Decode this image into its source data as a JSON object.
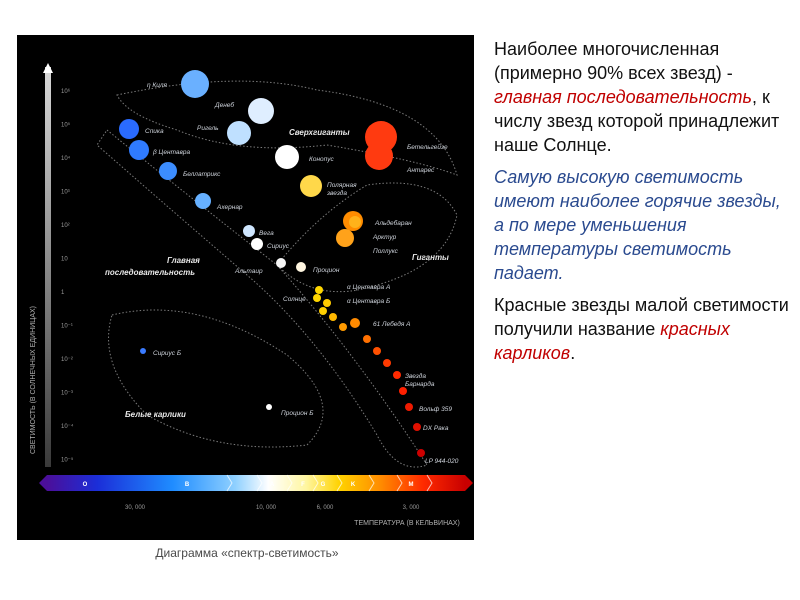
{
  "diagram": {
    "ylabel": "СВЕТИМОСТЬ (В СОЛНЕЧНЫХ ЕДИНИЦАХ)",
    "xlabel": "ТЕМПЕРАТУРА (В КЕЛЬВИНАХ)",
    "y_ticks": [
      "10⁶",
      "10⁵",
      "10⁴",
      "10³",
      "10²",
      "10",
      "1",
      "10⁻¹",
      "10⁻²",
      "10⁻³",
      "10⁻⁴",
      "10⁻⁵"
    ],
    "x_ticks": [
      "30, 000",
      "10, 000",
      "6, 000",
      "3, 000"
    ],
    "spectral_classes": [
      "O",
      "B",
      "A",
      "F",
      "G",
      "K",
      "M"
    ],
    "regions": {
      "main_sequence": [
        "Главная",
        "последовательность"
      ],
      "supergiants": "Сверхгиганты",
      "giants": "Гиганты",
      "white_dwarfs": "Белые карлики"
    },
    "stars": [
      {
        "label": "η Киля",
        "color": "#6ab0ff"
      },
      {
        "label": "Денеб",
        "color": "#dfeeff"
      },
      {
        "label": "Ригель",
        "color": "#bfe0ff"
      },
      {
        "label": "Спика",
        "color": "#2a6bff"
      },
      {
        "label": "β Центавра",
        "color": "#2f7bff"
      },
      {
        "label": "Беллатрикс",
        "color": "#3c8dff"
      },
      {
        "label": "Ахернар",
        "color": "#66b0ff"
      },
      {
        "label": "Вега",
        "color": "#cfe6ff"
      },
      {
        "label": "Сириус",
        "color": "#ffffff"
      },
      {
        "label": "Альтаир",
        "color": "#f6f6f6"
      },
      {
        "label": "Процион",
        "color": "#fff6e0"
      },
      {
        "label": "Конопус",
        "color": "#ffffff"
      },
      {
        "label": "Полярная звезда",
        "color": "#ffd84a"
      },
      {
        "label": "Бетельгейзе",
        "color": "#ff3a10"
      },
      {
        "label": "Антарес",
        "color": "#ff3a10"
      },
      {
        "label": "Альдебаран",
        "color": "#ff8c00"
      },
      {
        "label": "Арктур",
        "color": "#ffa21a"
      },
      {
        "label": "Поллукс",
        "color": "#ffb21a"
      },
      {
        "label": "Солнце",
        "color": "#ffd700"
      },
      {
        "label": "α Центавра А",
        "color": "#ffd700"
      },
      {
        "label": "α Центавра Б",
        "color": "#ffcb00"
      },
      {
        "label": "61 Лебедя А",
        "color": "#ff8a00"
      },
      {
        "label": "Звезда Барнарда",
        "color": "#ff2a00"
      },
      {
        "label": "Вольф 359",
        "color": "#ee1a00"
      },
      {
        "label": "DX Рака",
        "color": "#e01000"
      },
      {
        "label": "LP 944-020",
        "color": "#cc0000"
      },
      {
        "label": "Сириус Б",
        "color": "#3a7bff"
      },
      {
        "label": "Процион Б",
        "color": "#ffffff"
      }
    ]
  },
  "caption": "Диаграмма «спектр-светимость»",
  "text": {
    "p1_a": "Наиболее многочисленная (примерно 90% всех звезд) - ",
    "p1_b": "главная последовательность",
    "p1_c": ", к числу звезд которой принадлежит наше Солнце.",
    "p2": "Самую высокую светимость имеют наиболее горячие звезды, а по мере уменьшения температуры светимость падает.",
    "p3_a": "Красные звезды малой светимости получили название ",
    "p3_b": "красных карликов",
    "p3_c": "."
  }
}
